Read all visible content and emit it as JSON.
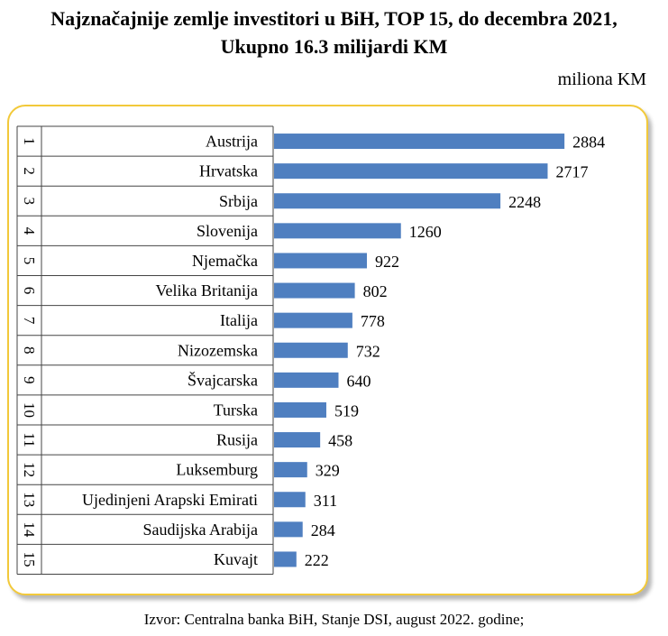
{
  "chart_data": {
    "type": "bar",
    "orientation": "horizontal",
    "title": "Najznačajnije zemlje investitori u BiH, TOP 15, do decembra 2021,",
    "subtitle": "Ukupno 16.3 milijardi KM",
    "unit": "miliona KM",
    "ranks": [
      "1",
      "2",
      "3",
      "4",
      "5",
      "6",
      "7",
      "8",
      "9",
      "10",
      "11",
      "12",
      "13",
      "14",
      "15"
    ],
    "categories": [
      "Austrija",
      "Hrvatska",
      "Srbija",
      "Slovenija",
      "Njemačka",
      "Velika Britanija",
      "Italija",
      "Nizozemska",
      "Švajcarska",
      "Turska",
      "Rusija",
      "Luksemburg",
      "Ujedinjeni Arapski Emirati",
      "Saudijska Arabija",
      "Kuvajt"
    ],
    "values": [
      2884,
      2717,
      2248,
      1260,
      922,
      802,
      778,
      732,
      640,
      519,
      458,
      329,
      311,
      284,
      222
    ],
    "bar_color": "#4f7fc0",
    "xlim": [
      0,
      3000
    ],
    "legend": "none",
    "grid": false
  },
  "source": "Izvor: Centralna banka BiH, Stanje DSI, august 2022. godine;"
}
